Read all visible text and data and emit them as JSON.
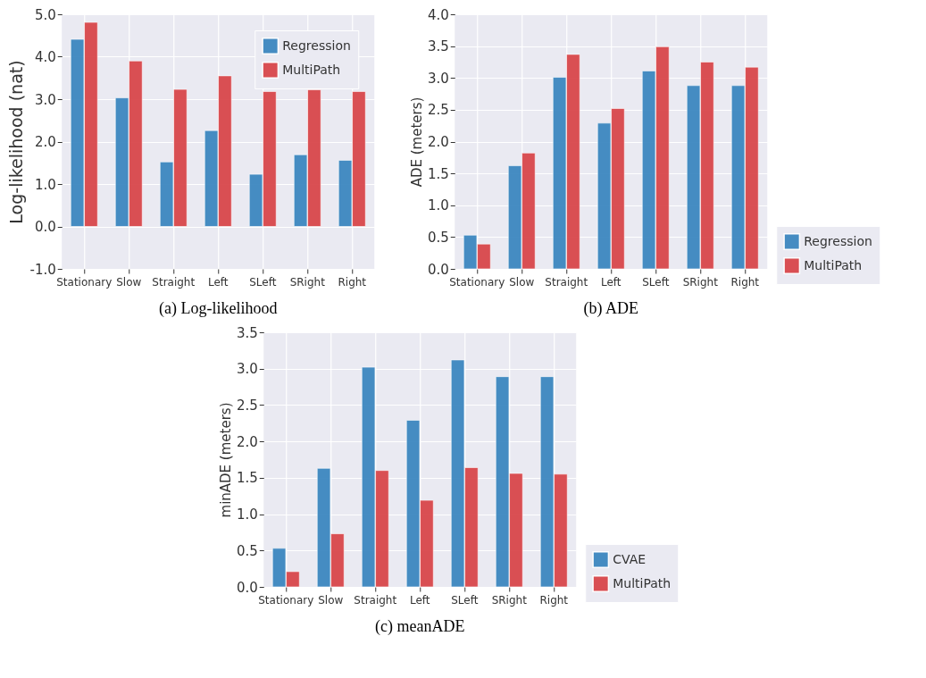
{
  "chart_data": [
    {
      "type": "bar",
      "title": "(a) Log-likelihood",
      "ylabel": "Log-likelihood (nat)",
      "categories": [
        "Stationary",
        "Slow",
        "Straight",
        "Left",
        "SLeft",
        "SRight",
        "Right"
      ],
      "series": [
        {
          "name": "Regression",
          "color": "#3d87c0",
          "values": [
            4.41,
            3.03,
            1.52,
            2.26,
            1.23,
            1.69,
            1.56
          ]
        },
        {
          "name": "MultiPath",
          "color": "#d9474b",
          "values": [
            4.81,
            3.9,
            3.23,
            3.55,
            3.18,
            3.22,
            3.18
          ]
        }
      ],
      "ylim": [
        -1,
        5
      ],
      "yticks": [
        {
          "value": -1,
          "label": "-1.0"
        },
        {
          "value": 0,
          "label": "0.0"
        },
        {
          "value": 1,
          "label": "1.0"
        },
        {
          "value": 2,
          "label": "2.0"
        },
        {
          "value": 3,
          "label": "3.0"
        },
        {
          "value": 4,
          "label": "4.0"
        },
        {
          "value": 5,
          "label": "5.0"
        }
      ],
      "grid": true,
      "legend": "top right"
    },
    {
      "type": "bar",
      "title": "(b) ADE",
      "ylabel": "ADE (meters)",
      "categories": [
        "Stationary",
        "Slow",
        "Straight",
        "Left",
        "SLeft",
        "SRight",
        "Right"
      ],
      "series": [
        {
          "name": "Regression",
          "color": "#3d87c0",
          "values": [
            0.53,
            1.62,
            3.01,
            2.29,
            3.11,
            2.88,
            2.88
          ]
        },
        {
          "name": "MultiPath",
          "color": "#d9474b",
          "values": [
            0.39,
            1.82,
            3.37,
            2.52,
            3.49,
            3.25,
            3.17
          ]
        }
      ],
      "ylim": [
        0,
        4
      ],
      "yticks": [
        {
          "value": 0,
          "label": "0.0"
        },
        {
          "value": 0.5,
          "label": "0.5"
        },
        {
          "value": 1,
          "label": "1.0"
        },
        {
          "value": 1.5,
          "label": "1.5"
        },
        {
          "value": 2,
          "label": "2.0"
        },
        {
          "value": 2.5,
          "label": "2.5"
        },
        {
          "value": 3,
          "label": "3.0"
        },
        {
          "value": 3.5,
          "label": "3.5"
        },
        {
          "value": 4,
          "label": "4.0"
        }
      ],
      "grid": true,
      "legend": "bottom right"
    },
    {
      "type": "bar",
      "title": "(c) meanADE",
      "ylabel": "minADE (meters)",
      "categories": [
        "Stationary",
        "Slow",
        "Straight",
        "Left",
        "SLeft",
        "SRight",
        "Right"
      ],
      "series": [
        {
          "name": "CVAE",
          "color": "#3d87c0",
          "values": [
            0.53,
            1.63,
            3.02,
            2.29,
            3.12,
            2.89,
            2.89
          ]
        },
        {
          "name": "MultiPath",
          "color": "#d9474b",
          "values": [
            0.21,
            0.73,
            1.6,
            1.19,
            1.64,
            1.56,
            1.55
          ]
        }
      ],
      "ylim": [
        0,
        3.5
      ],
      "yticks": [
        {
          "value": 0,
          "label": "0.0"
        },
        {
          "value": 0.5,
          "label": "0.5"
        },
        {
          "value": 1,
          "label": "1.0"
        },
        {
          "value": 1.5,
          "label": "1.5"
        },
        {
          "value": 2,
          "label": "2.0"
        },
        {
          "value": 2.5,
          "label": "2.5"
        },
        {
          "value": 3,
          "label": "3.0"
        },
        {
          "value": 3.5,
          "label": "3.5"
        }
      ],
      "grid": true,
      "legend": "bottom right"
    }
  ]
}
